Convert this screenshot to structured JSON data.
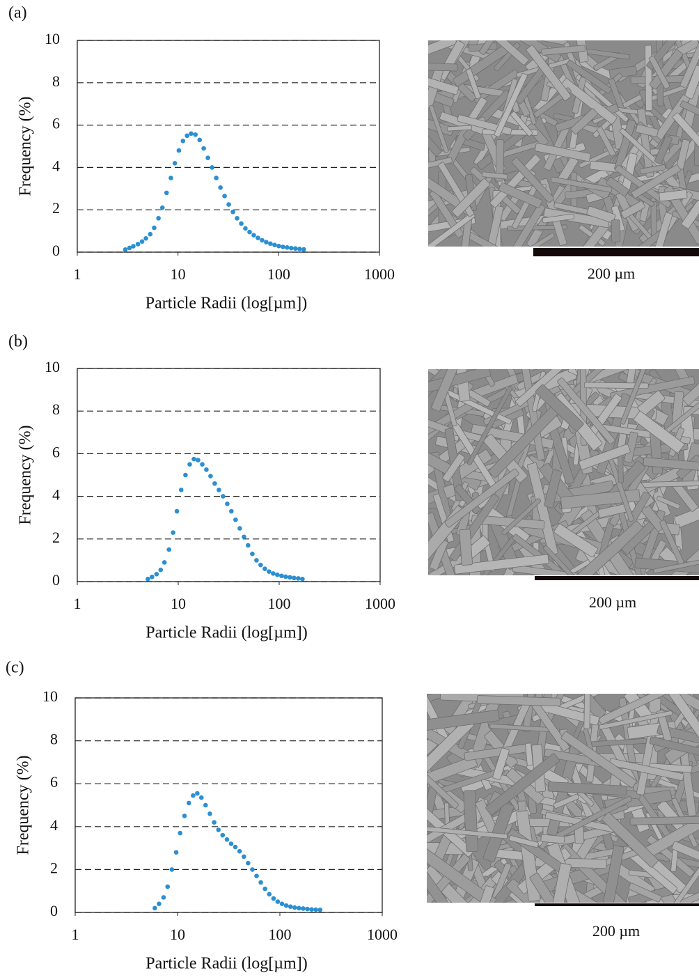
{
  "chart_data": [
    {
      "type": "scatter",
      "label": "(a)",
      "xlabel": "Particle Radii (log[µm])",
      "ylabel": "Frequency (%)",
      "image_caption": "200 µm",
      "xscale": "log",
      "xlim": [
        1,
        1000
      ],
      "xticks": [
        1,
        10,
        100,
        1000
      ],
      "ylim": [
        0,
        10
      ],
      "yticks": [
        0,
        2,
        4,
        6,
        8,
        10
      ],
      "grid": "dashed",
      "color": "#2b8fd2",
      "x": [
        3.0,
        3.3,
        3.6,
        4.0,
        4.4,
        4.8,
        5.3,
        5.8,
        6.4,
        7.0,
        7.7,
        8.5,
        9.3,
        10.2,
        11.2,
        12.3,
        13.5,
        14.9,
        16.4,
        18.0,
        19.8,
        21.8,
        24.0,
        26.4,
        29.0,
        31.9,
        35.1,
        38.6,
        42.5,
        46.7,
        51.4,
        56.5,
        62.2,
        68.4,
        75.2,
        82.7,
        91.0,
        100.1,
        110.1,
        121.1,
        133.2,
        146.5,
        161.2,
        177.3
      ],
      "values": [
        0.12,
        0.2,
        0.28,
        0.38,
        0.5,
        0.65,
        0.85,
        1.15,
        1.6,
        2.1,
        2.8,
        3.5,
        4.2,
        4.8,
        5.25,
        5.5,
        5.6,
        5.55,
        5.3,
        4.9,
        4.45,
        4.0,
        3.5,
        3.05,
        2.65,
        2.25,
        1.9,
        1.6,
        1.35,
        1.12,
        0.95,
        0.8,
        0.67,
        0.56,
        0.47,
        0.4,
        0.34,
        0.29,
        0.25,
        0.22,
        0.19,
        0.17,
        0.15,
        0.13
      ]
    },
    {
      "type": "scatter",
      "label": "(b)",
      "xlabel": "Particle Radii (log[µm])",
      "ylabel": "Frequency (%)",
      "image_caption": "200 µm",
      "xscale": "log",
      "xlim": [
        1,
        1000
      ],
      "xticks": [
        1,
        10,
        100,
        1000
      ],
      "ylim": [
        0,
        10
      ],
      "yticks": [
        0,
        2,
        4,
        6,
        8,
        10
      ],
      "grid": "dashed",
      "color": "#2b8fd2",
      "x": [
        5.0,
        5.5,
        6.1,
        6.7,
        7.3,
        8.1,
        8.9,
        9.7,
        10.7,
        11.8,
        13.0,
        14.3,
        15.7,
        17.3,
        19.0,
        20.9,
        23.0,
        25.3,
        27.8,
        30.6,
        33.6,
        37.0,
        40.7,
        44.8,
        49.2,
        54.2,
        59.6,
        65.5,
        72.1,
        79.3,
        87.2,
        95.9,
        105.5,
        116.1,
        127.7,
        140.5,
        154.5,
        170.0
      ],
      "values": [
        0.12,
        0.22,
        0.35,
        0.55,
        0.9,
        1.5,
        2.3,
        3.3,
        4.3,
        5.0,
        5.5,
        5.75,
        5.7,
        5.5,
        5.25,
        4.95,
        4.6,
        4.3,
        4.0,
        3.65,
        3.3,
        2.9,
        2.5,
        2.1,
        1.7,
        1.3,
        1.0,
        0.78,
        0.6,
        0.47,
        0.38,
        0.32,
        0.27,
        0.23,
        0.2,
        0.17,
        0.15,
        0.12
      ]
    },
    {
      "type": "scatter",
      "label": "(c)",
      "xlabel": "Particle Radii (log[µm])",
      "ylabel": "Frequency (%)",
      "image_caption": "200 µm",
      "xscale": "log",
      "xlim": [
        1,
        1000
      ],
      "xticks": [
        1,
        10,
        100,
        1000
      ],
      "ylim": [
        0,
        10
      ],
      "yticks": [
        0,
        2,
        4,
        6,
        8,
        10
      ],
      "grid": "dashed",
      "color": "#2b8fd2",
      "x": [
        6.0,
        6.6,
        7.3,
        8.0,
        8.8,
        9.7,
        10.6,
        11.7,
        12.9,
        14.2,
        15.6,
        17.1,
        18.8,
        20.7,
        22.8,
        25.1,
        27.6,
        30.4,
        33.4,
        36.7,
        40.4,
        44.5,
        48.9,
        53.8,
        59.2,
        65.1,
        71.6,
        78.8,
        86.7,
        95.3,
        104.9,
        115.4,
        126.9,
        139.6,
        153.5,
        168.9,
        185.8,
        204.4,
        224.8,
        247.3
      ],
      "values": [
        0.2,
        0.4,
        0.7,
        1.2,
        2.0,
        2.8,
        3.7,
        4.5,
        5.1,
        5.45,
        5.55,
        5.35,
        5.0,
        4.6,
        4.2,
        3.85,
        3.6,
        3.4,
        3.2,
        3.05,
        2.85,
        2.6,
        2.3,
        2.0,
        1.7,
        1.4,
        1.1,
        0.85,
        0.65,
        0.5,
        0.4,
        0.32,
        0.27,
        0.23,
        0.2,
        0.18,
        0.16,
        0.14,
        0.13,
        0.12
      ]
    }
  ]
}
